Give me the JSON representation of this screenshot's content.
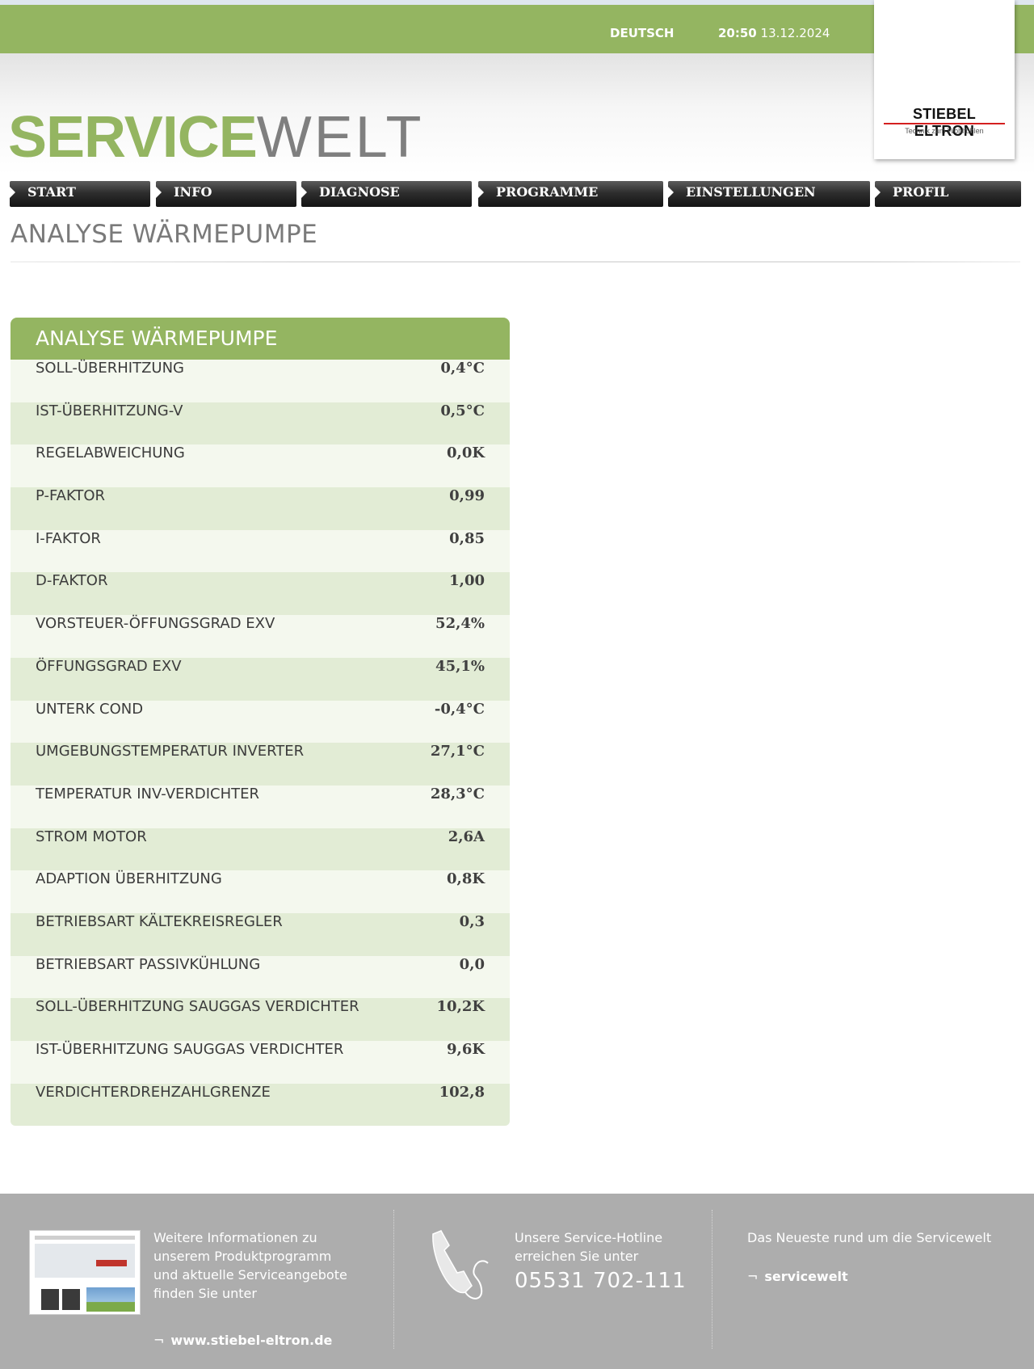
{
  "topbar": {
    "language": "DEUTSCH",
    "time": "20:50",
    "date": "13.12.2024"
  },
  "brand": {
    "name": "STIEBEL ELTRON",
    "slogan": "Technik zum Wohlfühlen"
  },
  "site_title": {
    "part1": "SERVICE",
    "part2": "WELT"
  },
  "nav": [
    {
      "label": "START"
    },
    {
      "label": "INFO"
    },
    {
      "label": "DIAGNOSE"
    },
    {
      "label": "PROGRAMME"
    },
    {
      "label": "EINSTELLUNGEN"
    },
    {
      "label": "PROFIL"
    }
  ],
  "page_title": "ANALYSE WÄRMEPUMPE",
  "panel": {
    "title": "ANALYSE WÄRMEPUMPE",
    "rows": [
      {
        "label": "SOLL-ÜBERHITZUNG",
        "value": "0,4°C"
      },
      {
        "label": "IST-ÜBERHITZUNG-V",
        "value": "0,5°C"
      },
      {
        "label": "REGELABWEICHUNG",
        "value": "0,0K"
      },
      {
        "label": "P-FAKTOR",
        "value": "0,99"
      },
      {
        "label": "I-FAKTOR",
        "value": "0,85"
      },
      {
        "label": "D-FAKTOR",
        "value": "1,00"
      },
      {
        "label": "VORSTEUER-ÖFFUNGSGRAD EXV",
        "value": "52,4%"
      },
      {
        "label": "ÖFFUNGSGRAD EXV",
        "value": "45,1%"
      },
      {
        "label": "UNTERK COND",
        "value": "-0,4°C"
      },
      {
        "label": "UMGEBUNGSTEMPERATUR INVERTER",
        "value": "27,1°C"
      },
      {
        "label": "TEMPERATUR INV-VERDICHTER",
        "value": "28,3°C"
      },
      {
        "label": "STROM MOTOR",
        "value": "2,6A"
      },
      {
        "label": "ADAPTION ÜBERHITZUNG",
        "value": "0,8K"
      },
      {
        "label": "BETRIEBSART KÄLTEKREISREGLER",
        "value": "0,3"
      },
      {
        "label": "BETRIEBSART PASSIVKÜHLUNG",
        "value": "0,0"
      },
      {
        "label": "SOLL-ÜBERHITZUNG SAUGGAS VERDICHTER",
        "value": "10,2K"
      },
      {
        "label": "IST-ÜBERHITZUNG SAUGGAS VERDICHTER",
        "value": "9,6K"
      },
      {
        "label": "VERDICHTERDREHZAHLGRENZE",
        "value": "102,8"
      }
    ]
  },
  "footer": {
    "info_line1": "Weitere Informationen zu",
    "info_line2": "unserem Produktprogramm",
    "info_line3": "und aktuelle Serviceangebote",
    "info_line4": "finden Sie unter",
    "info_link": "www.stiebel-eltron.de",
    "hotline_line1": "Unsere Service-Hotline",
    "hotline_line2": "erreichen Sie unter",
    "hotline_number": "05531 702-111",
    "news_text": "Das Neueste rund um die Servicewelt",
    "news_link": "servicewelt",
    "link_arrow": "¬",
    "icons": {
      "phone": "phone-handset-icon",
      "thumbnail": "website-thumbnail"
    }
  },
  "colors": {
    "brand_green": "#94b561",
    "nav_dark": "#1e1e1e",
    "row_light": "#f4f8ee",
    "row_dark": "#e2ecd5",
    "footer_grey": "#adadad",
    "brand_red": "#d42020"
  }
}
